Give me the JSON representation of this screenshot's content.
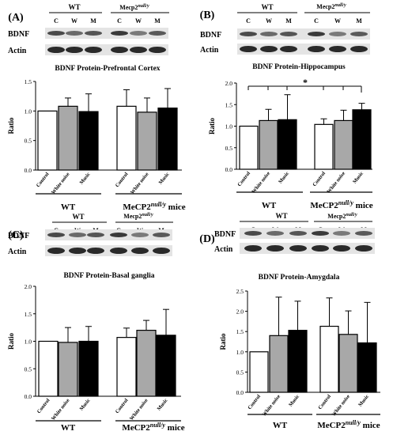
{
  "chart_data": [
    {
      "type": "bar",
      "panel_label": "(A)",
      "title": "BDNF Protein-Prefrontal Cortex",
      "ylabel": "Ratio",
      "ylim": [
        0,
        1.5
      ],
      "yticks": [
        "0.0",
        "0.5",
        "1.0",
        "1.5"
      ],
      "categories": [
        "Control",
        "White noise",
        "Music",
        "Control",
        "White noise",
        "Music"
      ],
      "groups": [
        "WT",
        "MeCP2null/y mice"
      ],
      "values": [
        1.0,
        1.08,
        0.99,
        1.08,
        0.98,
        1.05
      ],
      "errors": [
        0.0,
        0.14,
        0.3,
        0.28,
        0.24,
        0.33
      ],
      "blot": {
        "wt_label": "WT",
        "mut_label": "Mecp2null/y",
        "lanes": [
          "C",
          "W",
          "M",
          "C",
          "W",
          "M"
        ],
        "rows": [
          "BDNF",
          "Actin"
        ]
      }
    },
    {
      "type": "bar",
      "panel_label": "(B)",
      "title": "BDNF Protein-Hippocampus",
      "ylabel": "Ratio",
      "ylim": [
        0,
        2.0
      ],
      "yticks": [
        "0.0",
        "0.5",
        "1.0",
        "1.5",
        "2.0"
      ],
      "categories": [
        "Control",
        "White noise",
        "Music",
        "Control",
        "White noise",
        "Music"
      ],
      "groups": [
        "WT",
        "MeCP2null/y mice"
      ],
      "values": [
        1.0,
        1.13,
        1.15,
        1.04,
        1.13,
        1.38
      ],
      "errors": [
        0.0,
        0.26,
        0.58,
        0.13,
        0.24,
        0.15
      ],
      "annotation": "*",
      "blot": {
        "wt_label": "WT",
        "mut_label": "Mecp2null/y",
        "lanes": [
          "C",
          "W",
          "M",
          "C",
          "W",
          "M"
        ],
        "rows": [
          "BDNF",
          "Actin"
        ]
      }
    },
    {
      "type": "bar",
      "panel_label": "(C)",
      "title": "BDNF Protein-Basal ganglia",
      "ylabel": "Ratio",
      "ylim": [
        0,
        2.0
      ],
      "yticks": [
        "0.0",
        "0.5",
        "1.0",
        "1.5",
        "2.0"
      ],
      "categories": [
        "Control",
        "White noise",
        "Music",
        "Control",
        "White noise",
        "Music"
      ],
      "groups": [
        "WT",
        "MeCP2null/y mice"
      ],
      "values": [
        1.0,
        0.98,
        1.0,
        1.07,
        1.2,
        1.11
      ],
      "errors": [
        0.0,
        0.27,
        0.27,
        0.17,
        0.18,
        0.47
      ],
      "blot": {
        "wt_label": "WT",
        "mut_label": "Mecp2null/y",
        "lanes": [
          "C",
          "W",
          "M",
          "C",
          "W",
          "M"
        ],
        "rows": [
          "BDNF",
          "Actin"
        ]
      }
    },
    {
      "type": "bar",
      "panel_label": "(D)",
      "title": "BDNF Protein-Amygdala",
      "ylabel": "Ratio",
      "ylim": [
        0,
        2.5
      ],
      "yticks": [
        "0.0",
        "0.5",
        "1.0",
        "1.5",
        "2.0",
        "2.5"
      ],
      "categories": [
        "Control",
        "White noise",
        "Music",
        "Control",
        "White noise",
        "Music"
      ],
      "groups": [
        "WT",
        "MeCP2null/y mice"
      ],
      "values": [
        1.0,
        1.4,
        1.53,
        1.63,
        1.43,
        1.22
      ],
      "errors": [
        0.0,
        0.95,
        0.72,
        0.7,
        0.58,
        1.0
      ],
      "blot": {
        "wt_label": "WT",
        "mut_label": "Mecp2null/y",
        "lanes": [
          "C",
          "W",
          "M",
          "C",
          "W",
          "M"
        ],
        "rows": [
          "BDNF",
          "Actin"
        ]
      }
    }
  ]
}
